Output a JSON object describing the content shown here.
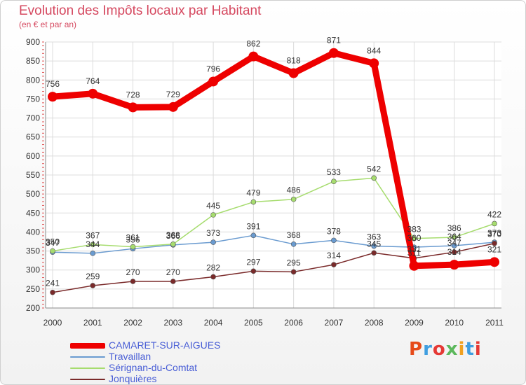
{
  "header": {
    "title": "Evolution des Impôts locaux par Habitant",
    "subtitle": "(en € et par an)"
  },
  "logo": {
    "text": "Proxiti",
    "colors": [
      "#e64a19",
      "#3f9ee0",
      "#e53935",
      "#5cb85c",
      "#f0a020",
      "#3f9ee0",
      "#e53935"
    ]
  },
  "chart_data": {
    "type": "line",
    "title": "Evolution des Impôts locaux par Habitant",
    "subtitle": "(en € et par an)",
    "x": [
      "2000",
      "2001",
      "2002",
      "2003",
      "2004",
      "2005",
      "2006",
      "2007",
      "2008",
      "2009",
      "2010",
      "2011"
    ],
    "ylim": [
      200,
      900
    ],
    "yticks": [
      200,
      250,
      300,
      350,
      400,
      450,
      500,
      550,
      600,
      650,
      700,
      750,
      800,
      850,
      900
    ],
    "grid": true,
    "legend_position": "bottom-left",
    "series": [
      {
        "name": "CAMARET-SUR-AIGUES",
        "color": "#ee0000",
        "emphasis": true,
        "values": [
          756,
          764,
          728,
          729,
          796,
          862,
          818,
          871,
          844,
          311,
          314,
          321
        ]
      },
      {
        "name": "Travaillan",
        "color": "#6a9bd0",
        "emphasis": false,
        "values": [
          347,
          344,
          356,
          366,
          373,
          391,
          368,
          378,
          363,
          360,
          364,
          373
        ]
      },
      {
        "name": "Sérignan-du-Comtat",
        "color": "#a6dc6e",
        "emphasis": false,
        "values": [
          350,
          367,
          361,
          368,
          445,
          479,
          486,
          533,
          542,
          383,
          386,
          422
        ]
      },
      {
        "name": "Jonquières",
        "color": "#7a2a2a",
        "emphasis": false,
        "values": [
          241,
          259,
          270,
          270,
          282,
          297,
          295,
          314,
          345,
          331,
          347,
          370
        ]
      }
    ],
    "data_labels": [
      [
        "756",
        "764",
        "728",
        "729",
        "796",
        "862",
        "818",
        "871",
        "844",
        "311",
        "314",
        "321"
      ],
      [
        "347",
        "344",
        "356",
        "366",
        "373",
        "391",
        "368",
        "378",
        "363",
        "360",
        "364",
        "373"
      ],
      [
        "350",
        "367",
        "361",
        "368",
        "445",
        "479",
        "486",
        "533",
        "542",
        "383",
        "386",
        "422"
      ],
      [
        "241",
        "259",
        "270",
        "270",
        "282",
        "297",
        "295",
        "314",
        "345",
        "331",
        "347",
        "370"
      ]
    ]
  }
}
